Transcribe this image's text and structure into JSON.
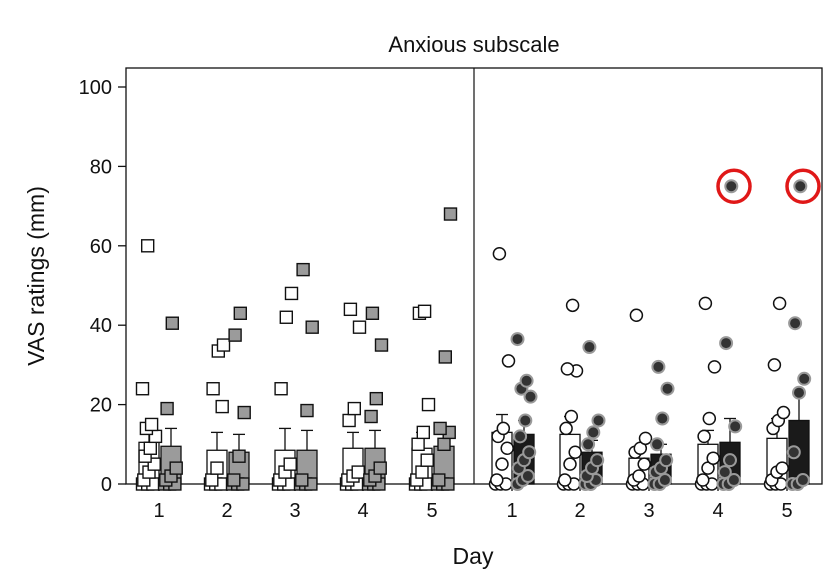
{
  "chart_data": {
    "type": "bar",
    "title": "Anxious subscale",
    "xlabel": "Day",
    "ylabel": "VAS ratings (mm)",
    "ylim": [
      0,
      105
    ],
    "yticks": [
      0,
      20,
      40,
      60,
      80,
      100
    ],
    "panels": [
      {
        "marker": "square",
        "categories": [
          "1",
          "2",
          "3",
          "4",
          "5"
        ],
        "series": [
          {
            "fill": "#ffffff",
            "bar_means": [
              10.5,
              8.5,
              8.5,
              9,
              9
            ],
            "bar_errors": [
              4,
              4.5,
              5.5,
              4,
              4
            ],
            "points": [
              [
                0,
                0,
                0,
                1,
                3,
                5,
                7,
                9,
                12,
                14,
                15,
                24,
                60
              ],
              [
                0,
                0,
                0,
                1,
                4,
                19.5,
                24,
                33.5,
                35
              ],
              [
                0,
                0,
                0,
                1,
                3,
                5,
                24,
                42,
                48
              ],
              [
                0,
                0,
                0,
                1,
                2,
                3,
                16,
                19,
                39.5,
                44
              ],
              [
                0,
                0,
                0,
                1,
                3,
                6,
                10,
                13,
                20,
                43,
                43.5
              ]
            ]
          },
          {
            "fill": "#9b9b9b",
            "bar_means": [
              9.5,
              8,
              8.5,
              9,
              9.5
            ],
            "bar_errors": [
              4.5,
              4.5,
              5,
              4.5,
              4.5
            ],
            "points": [
              [
                0,
                0,
                0,
                1,
                2,
                4,
                19,
                40.5
              ],
              [
                0,
                0,
                0,
                1,
                7,
                18,
                37.5,
                43
              ],
              [
                0,
                0,
                0,
                1,
                18.5,
                39.5,
                54
              ],
              [
                0,
                0,
                0,
                1,
                2,
                4,
                17,
                21.5,
                35,
                43
              ],
              [
                0,
                0,
                0,
                1,
                10,
                13,
                14,
                32,
                68
              ]
            ]
          }
        ]
      },
      {
        "marker": "circle",
        "categories": [
          "1",
          "2",
          "3",
          "4",
          "5"
        ],
        "series": [
          {
            "fill": "#ffffff",
            "bar_means": [
              13,
              12.5,
              6.5,
              10,
              11.5
            ],
            "bar_errors": [
              4.5,
              4.5,
              2,
              3.5,
              5
            ],
            "points": [
              [
                0,
                0,
                0,
                1,
                5,
                9,
                12,
                14,
                31,
                58
              ],
              [
                0,
                0,
                0,
                1,
                5,
                8,
                14,
                17,
                28.5,
                29,
                45
              ],
              [
                0,
                0,
                0,
                1,
                2,
                5,
                8,
                9,
                11.5,
                42.5
              ],
              [
                0,
                0,
                0,
                1,
                4,
                6.5,
                12,
                16.5,
                29.5,
                45.5
              ],
              [
                0,
                0,
                0,
                1,
                3,
                4,
                14,
                16,
                18,
                30,
                45.5
              ]
            ]
          },
          {
            "fill": "#1a1a1a",
            "bar_means": [
              12.5,
              8,
              7.5,
              10.5,
              16
            ],
            "bar_errors": [
              3.5,
              3,
              2.5,
              6,
              6.5
            ],
            "points": [
              [
                0,
                1,
                2,
                4,
                6,
                8,
                12,
                16,
                22,
                24,
                26,
                36.5
              ],
              [
                0,
                0,
                1,
                2,
                4,
                6,
                10,
                13,
                16,
                34.5
              ],
              [
                0,
                0,
                1,
                3,
                4,
                6,
                10,
                16.5,
                24,
                29.5
              ],
              [
                0,
                0,
                1,
                3,
                6,
                14.5,
                35.5,
                75
              ],
              [
                0,
                0,
                1,
                8,
                23,
                26.5,
                40.5,
                75
              ]
            ]
          }
        ]
      }
    ],
    "highlight_color": "#e01818",
    "highlighted_points": [
      {
        "panel": 2,
        "day": "4",
        "value": 75
      },
      {
        "panel": 2,
        "day": "5",
        "value": 75
      }
    ]
  }
}
